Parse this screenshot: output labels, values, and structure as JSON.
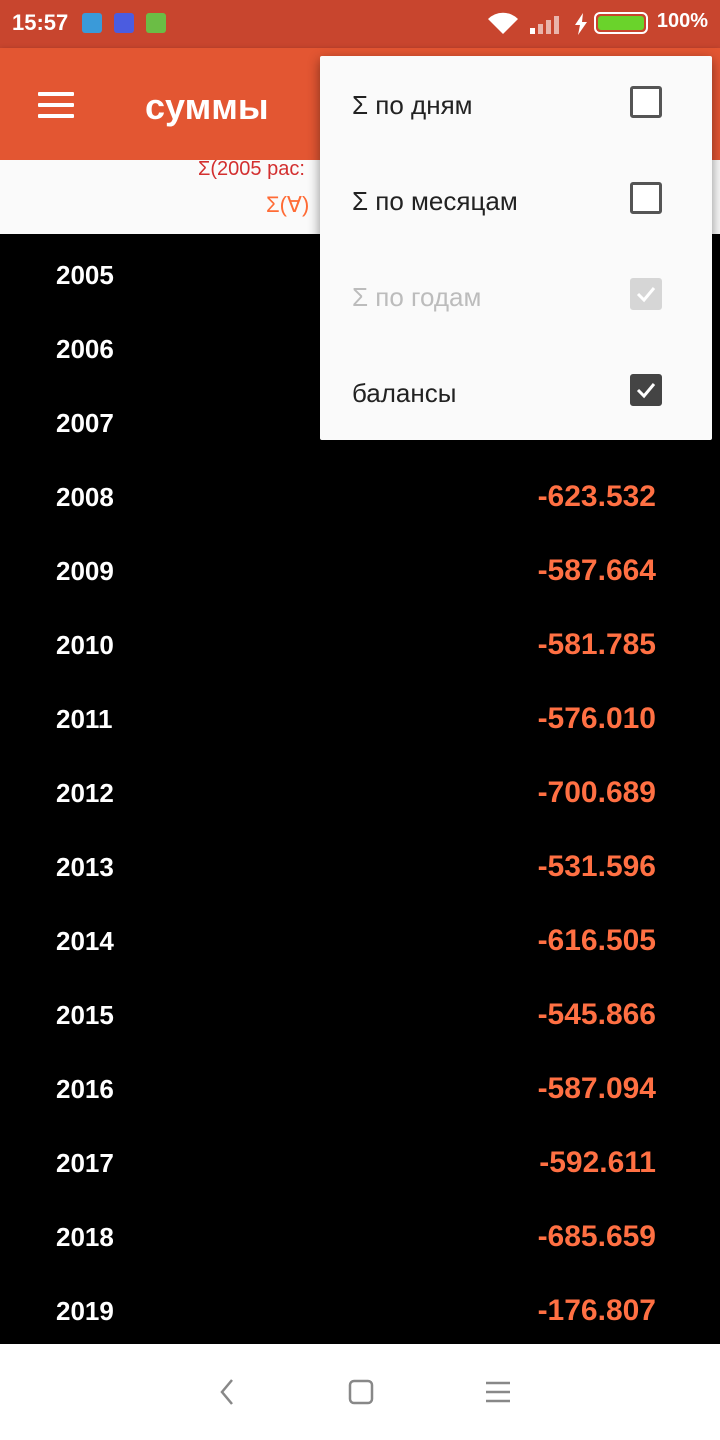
{
  "status": {
    "time": "15:57",
    "battery": "100%"
  },
  "appbar": {
    "title": "суммы"
  },
  "summary": {
    "line1": "Σ(2005 рас:",
    "line2": "Σ(∀)"
  },
  "years": [
    {
      "year": "2005",
      "value": ""
    },
    {
      "year": "2006",
      "value": ""
    },
    {
      "year": "2007",
      "value": ""
    },
    {
      "year": "2008",
      "value": "-623.532"
    },
    {
      "year": "2009",
      "value": "-587.664"
    },
    {
      "year": "2010",
      "value": "-581.785"
    },
    {
      "year": "2011",
      "value": "-576.010"
    },
    {
      "year": "2012",
      "value": "-700.689"
    },
    {
      "year": "2013",
      "value": "-531.596"
    },
    {
      "year": "2014",
      "value": "-616.505"
    },
    {
      "year": "2015",
      "value": "-545.866"
    },
    {
      "year": "2016",
      "value": "-587.094"
    },
    {
      "year": "2017",
      "value": "-592.611"
    },
    {
      "year": "2018",
      "value": "-685.659"
    },
    {
      "year": "2019",
      "value": "-176.807"
    }
  ],
  "menu": {
    "items": [
      {
        "label": "Σ по дням",
        "checked": false,
        "enabled": true
      },
      {
        "label": "Σ по месяцам",
        "checked": false,
        "enabled": true
      },
      {
        "label": "Σ по годам",
        "checked": true,
        "enabled": false
      },
      {
        "label": "балансы",
        "checked": true,
        "enabled": true
      }
    ]
  }
}
